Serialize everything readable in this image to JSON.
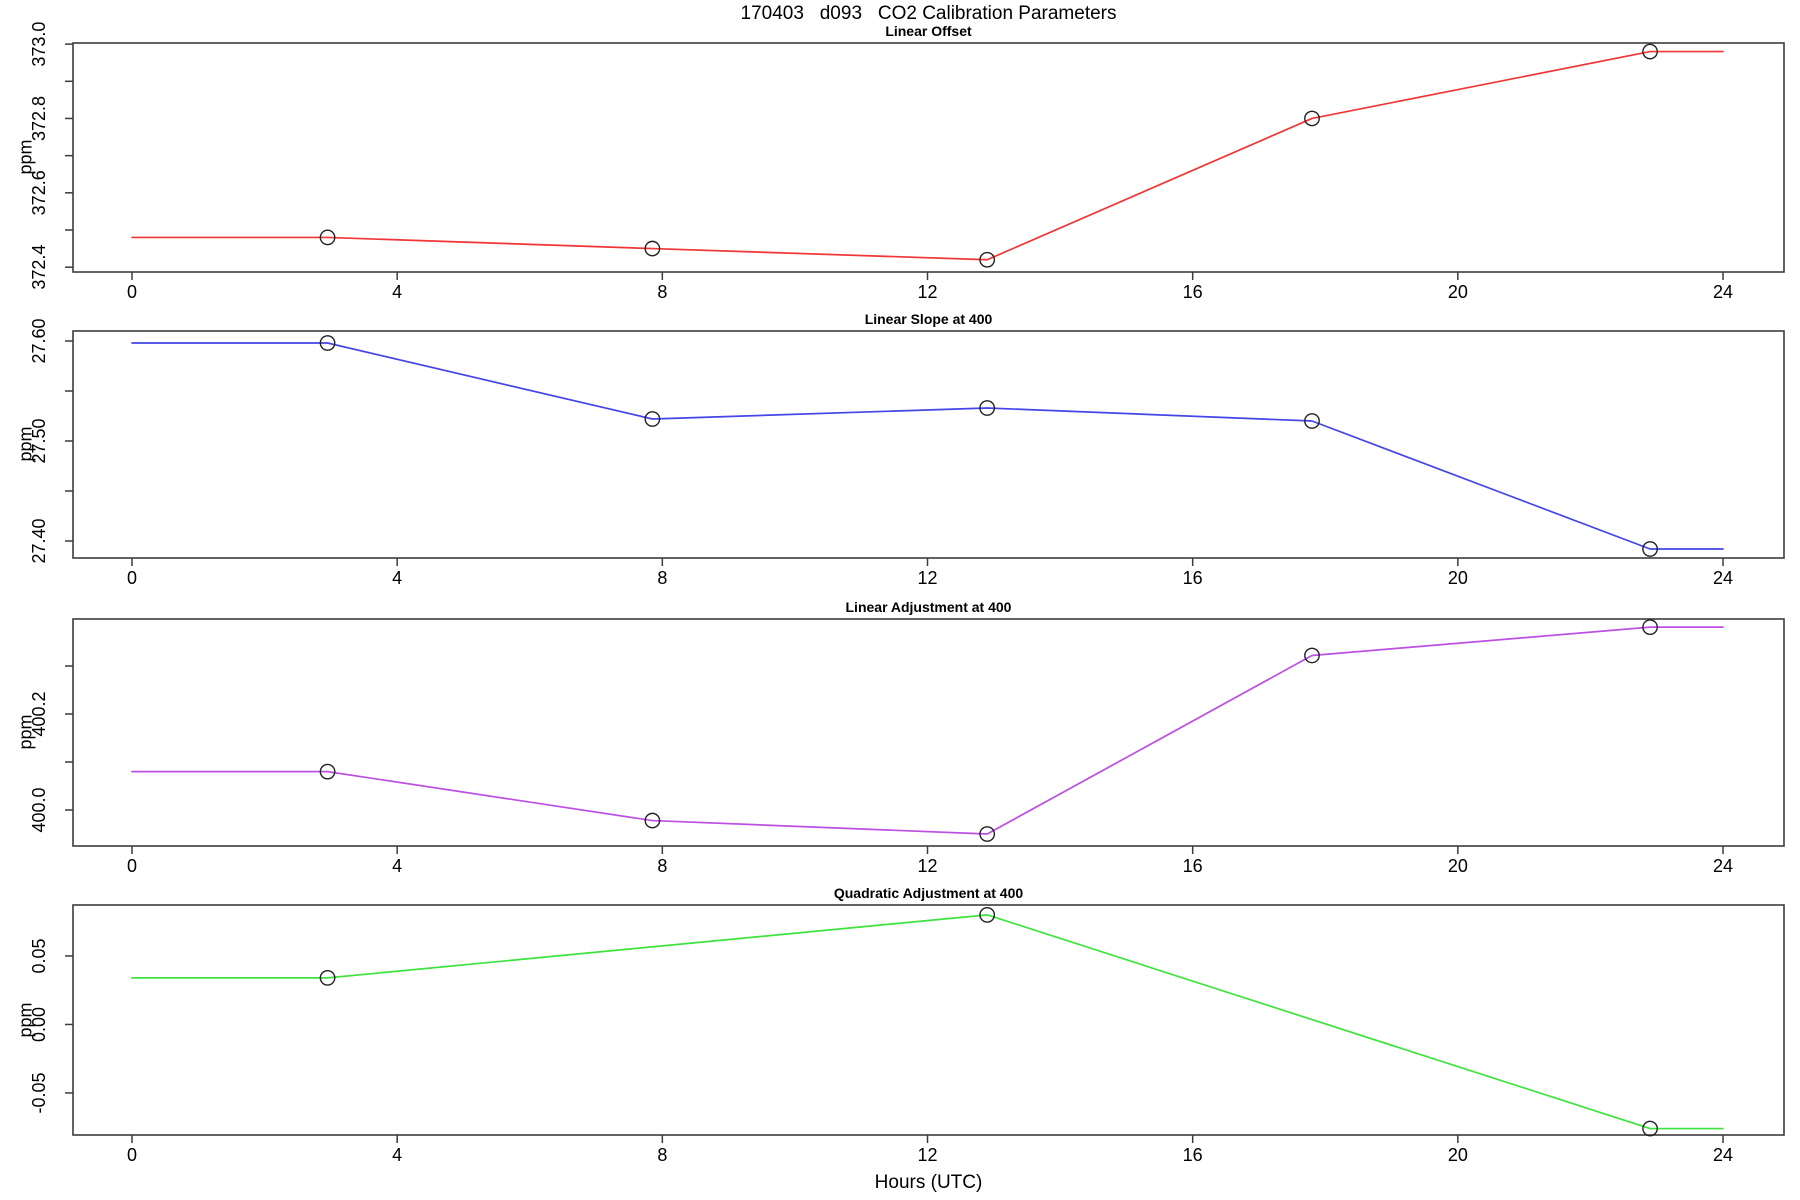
{
  "title": "170403   d093   CO2 Calibration Parameters",
  "xlabel": "Hours (UTC)",
  "style": {
    "background": "#ffffff",
    "axis_color": "#3c3c3c",
    "text_color": "#000000",
    "marker_color": "#222222"
  },
  "x_axis": {
    "xlim": [
      -0.89,
      24.92
    ],
    "ticks": [
      {
        "v": 0,
        "label": "0"
      },
      {
        "v": 4,
        "label": "4"
      },
      {
        "v": 8,
        "label": "8"
      },
      {
        "v": 12,
        "label": "12"
      },
      {
        "v": 16,
        "label": "16"
      },
      {
        "v": 20,
        "label": "20"
      },
      {
        "v": 24,
        "label": "24"
      }
    ]
  },
  "chart_data": [
    {
      "type": "line",
      "title": "Linear Offset",
      "ylabel": "ppm",
      "color": "#f23535",
      "x": [
        0,
        2.95,
        7.85,
        12.9,
        17.8,
        22.9,
        24
      ],
      "y": [
        372.48,
        372.48,
        372.45,
        372.42,
        372.8,
        372.98,
        372.98
      ],
      "marker_indices": [
        1,
        2,
        3,
        4,
        5
      ],
      "ylim": [
        372.387,
        373.003
      ],
      "yticks": [
        {
          "v": 372.4,
          "label": "372.4"
        },
        {
          "v": 372.5,
          "label": ""
        },
        {
          "v": 372.6,
          "label": "372.6"
        },
        {
          "v": 372.7,
          "label": ""
        },
        {
          "v": 372.8,
          "label": "372.8"
        },
        {
          "v": 372.9,
          "label": ""
        },
        {
          "v": 373.0,
          "label": "373.0"
        }
      ]
    },
    {
      "type": "line",
      "title": "Linear Slope at 400",
      "ylabel": "ppm",
      "color": "#4545e8",
      "x": [
        0,
        2.95,
        7.85,
        12.9,
        17.8,
        22.9,
        24
      ],
      "y": [
        27.598,
        27.598,
        27.522,
        27.533,
        27.52,
        27.392,
        27.392
      ],
      "marker_indices": [
        1,
        2,
        3,
        4,
        5
      ],
      "ylim": [
        27.383,
        27.61
      ],
      "yticks": [
        {
          "v": 27.4,
          "label": "27.40"
        },
        {
          "v": 27.45,
          "label": ""
        },
        {
          "v": 27.5,
          "label": "27.50"
        },
        {
          "v": 27.55,
          "label": ""
        },
        {
          "v": 27.6,
          "label": "27.60"
        }
      ]
    },
    {
      "type": "line",
      "title": "Linear Adjustment at 400",
      "ylabel": "ppm",
      "color": "#bd4fe3",
      "x": [
        0,
        2.95,
        7.85,
        12.9,
        17.8,
        22.9,
        24
      ],
      "y": [
        400.08,
        400.08,
        399.978,
        399.95,
        400.322,
        400.381,
        400.381
      ],
      "marker_indices": [
        1,
        2,
        3,
        4,
        5
      ],
      "ylim": [
        399.925,
        400.398
      ],
      "yticks": [
        {
          "v": 400.0,
          "label": "400.0"
        },
        {
          "v": 400.1,
          "label": ""
        },
        {
          "v": 400.2,
          "label": "400.2"
        },
        {
          "v": 400.3,
          "label": ""
        }
      ]
    },
    {
      "type": "line",
      "title": "Quadratic Adjustment at 400",
      "ylabel": "ppm",
      "color": "#3ce43c",
      "x": [
        0,
        2.95,
        12.9,
        22.9,
        24
      ],
      "y": [
        0.034,
        0.034,
        0.08,
        -0.076,
        -0.076
      ],
      "marker_indices": [
        1,
        2,
        3
      ],
      "ylim": [
        -0.0807,
        0.0872
      ],
      "yticks": [
        {
          "v": -0.05,
          "label": "-0.05"
        },
        {
          "v": 0.0,
          "label": "0.00"
        },
        {
          "v": 0.05,
          "label": "0.05"
        }
      ]
    }
  ]
}
